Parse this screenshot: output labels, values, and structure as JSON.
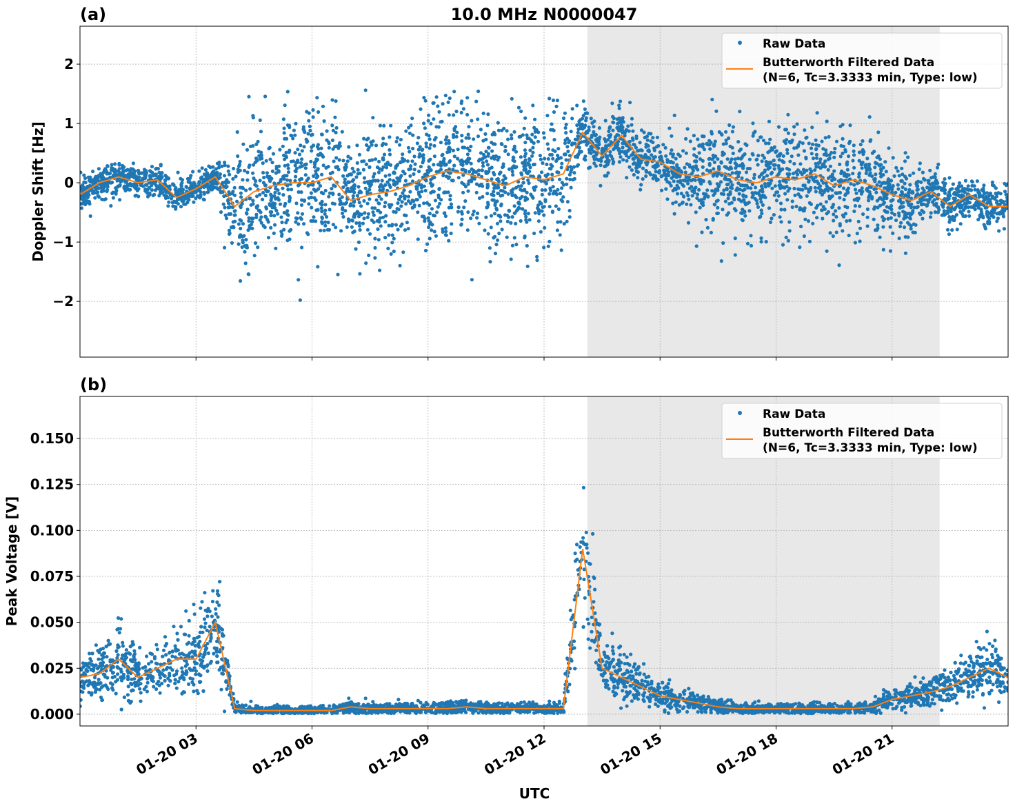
{
  "chart_data": [
    {
      "type": "scatter",
      "panel_label": "(a)",
      "title": "10.0 MHz N0000047",
      "ylabel": "Doppler Shift [Hz]",
      "xlabel": "",
      "xlim_hours_utc": [
        0,
        24
      ],
      "ylim": [
        -2.94,
        2.64
      ],
      "yticks": [
        2,
        1,
        0,
        -1,
        -2
      ],
      "ytick_labels": [
        "2",
        "1",
        "0",
        "−1",
        "−2"
      ],
      "grid": true,
      "legend_position": "top-right",
      "shaded_interval_hours_utc": [
        13.12,
        22.23
      ],
      "colors": {
        "raw": "#1f77b4",
        "filtered": "#ff7f0e",
        "shade": "#e8e8e8"
      },
      "series": [
        {
          "name": "Raw Data",
          "style": "points",
          "spread_note_hz": [
            0.3,
            0.3,
            0.3,
            0.3,
            0.3,
            0.3,
            0.3,
            0.3,
            1.1,
            1.2,
            1.3,
            1.3,
            1.3,
            1.3,
            1.2,
            1.2,
            1.2,
            1.2,
            1.3,
            1.3,
            1.3,
            1.3,
            1.2,
            1.2,
            1.2,
            1.1,
            0.5,
            0.5,
            0.5,
            0.4,
            0.4,
            0.6,
            0.9,
            1.0,
            1.0,
            1.0,
            1.0,
            1.1,
            1.0,
            1.0,
            1.0,
            0.9,
            0.8,
            0.6,
            0.45,
            0.4,
            0.4,
            0.4,
            0.4
          ]
        },
        {
          "name": "Butterworth Filtered Data\n(N=6, Tc=3.3333 min, Type: low)",
          "style": "line",
          "values": [
            -0.2,
            0.0,
            0.1,
            0.0,
            0.05,
            -0.25,
            -0.1,
            0.1,
            -0.4,
            -0.15,
            -0.05,
            0.0,
            0.0,
            0.1,
            -0.3,
            -0.2,
            -0.15,
            -0.05,
            0.1,
            0.2,
            0.15,
            0.05,
            -0.05,
            0.1,
            0.05,
            0.15,
            0.85,
            0.45,
            0.8,
            0.4,
            0.35,
            0.15,
            0.1,
            0.2,
            0.05,
            0.0,
            0.1,
            0.05,
            0.15,
            -0.05,
            0.05,
            -0.05,
            -0.2,
            -0.3,
            -0.15,
            -0.4,
            -0.2,
            -0.4,
            -0.4
          ]
        }
      ],
      "x_hours_utc": [
        0,
        0.5,
        1,
        1.5,
        2,
        2.5,
        3,
        3.5,
        4,
        4.5,
        5,
        5.5,
        6,
        6.5,
        7,
        7.5,
        8,
        8.5,
        9,
        9.5,
        10,
        10.5,
        11,
        11.5,
        12,
        12.5,
        13,
        13.5,
        14,
        14.5,
        15,
        15.5,
        16,
        16.5,
        17,
        17.5,
        18,
        18.5,
        19,
        19.5,
        20,
        20.5,
        21,
        21.5,
        22,
        22.5,
        23,
        23.5,
        24
      ]
    },
    {
      "type": "scatter",
      "panel_label": "(b)",
      "title": "",
      "ylabel": "Peak Voltage [V]",
      "xlabel": "UTC",
      "xlim_hours_utc": [
        0,
        24
      ],
      "ylim": [
        -0.0064,
        0.1729
      ],
      "yticks": [
        0.0,
        0.025,
        0.05,
        0.075,
        0.1,
        0.125,
        0.15
      ],
      "ytick_labels": [
        "0.000",
        "0.025",
        "0.050",
        "0.075",
        "0.100",
        "0.125",
        "0.150"
      ],
      "xticks_hours_utc": [
        3,
        6,
        9,
        12,
        15,
        18,
        21
      ],
      "xtick_labels": [
        "01-20 03",
        "01-20 06",
        "01-20 09",
        "01-20 12",
        "01-20 15",
        "01-20 18",
        "01-20 21"
      ],
      "grid": true,
      "legend_position": "top-right",
      "shaded_interval_hours_utc": [
        13.12,
        22.23
      ],
      "colors": {
        "raw": "#1f77b4",
        "filtered": "#ff7f0e",
        "shade": "#e8e8e8"
      },
      "series": [
        {
          "name": "Raw Data",
          "style": "points"
        },
        {
          "name": "Butterworth Filtered Data\n(N=6, Tc=3.3333 min, Type: low)",
          "style": "line",
          "values": [
            0.02,
            0.022,
            0.03,
            0.02,
            0.025,
            0.03,
            0.03,
            0.05,
            0.003,
            0.002,
            0.002,
            0.002,
            0.002,
            0.002,
            0.004,
            0.003,
            0.003,
            0.003,
            0.003,
            0.003,
            0.004,
            0.003,
            0.003,
            0.003,
            0.003,
            0.003,
            0.09,
            0.025,
            0.02,
            0.015,
            0.01,
            0.008,
            0.006,
            0.004,
            0.003,
            0.003,
            0.003,
            0.003,
            0.003,
            0.003,
            0.003,
            0.004,
            0.008,
            0.01,
            0.012,
            0.015,
            0.02,
            0.025,
            0.02
          ]
        }
      ],
      "x_hours_utc": [
        0,
        0.5,
        1,
        1.5,
        2,
        2.5,
        3,
        3.5,
        4,
        4.5,
        5,
        5.5,
        6,
        6.5,
        7,
        7.5,
        8,
        8.5,
        9,
        9.5,
        10,
        10.5,
        11,
        11.5,
        12,
        12.5,
        13,
        13.5,
        14,
        14.5,
        15,
        15.5,
        16,
        16.5,
        17,
        17.5,
        18,
        18.5,
        19,
        19.5,
        20,
        20.5,
        21,
        21.5,
        22,
        22.5,
        23,
        23.5,
        24
      ]
    }
  ],
  "legend": {
    "raw_label": "Raw Data",
    "filtered_label_line1": "Butterworth Filtered Data",
    "filtered_label_line2": "(N=6, Tc=3.3333 min, Type: low)"
  }
}
